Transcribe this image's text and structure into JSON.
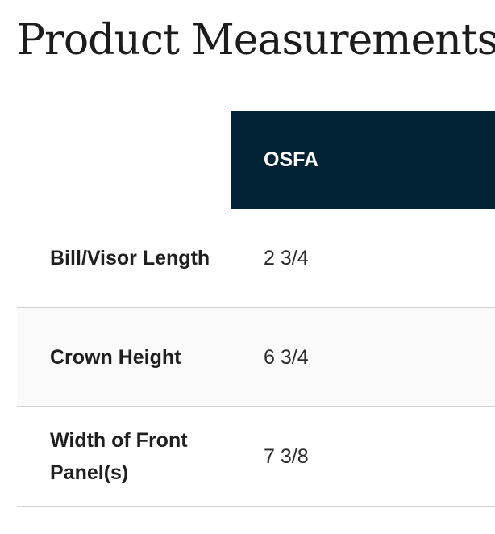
{
  "title": "Product Measurements",
  "table": {
    "column_header": "OSFA",
    "rows": [
      {
        "label": "Bill/Visor Length",
        "value": "2 3/4"
      },
      {
        "label": "Crown Height",
        "value": "6 3/4"
      },
      {
        "label": "Width of Front Panel(s)",
        "value": "7 3/8"
      }
    ]
  },
  "colors": {
    "header_background": "#022236",
    "header_text": "#ffffff",
    "row_divider": "#d3d3d3",
    "alt_row_background": "#fafafa"
  }
}
